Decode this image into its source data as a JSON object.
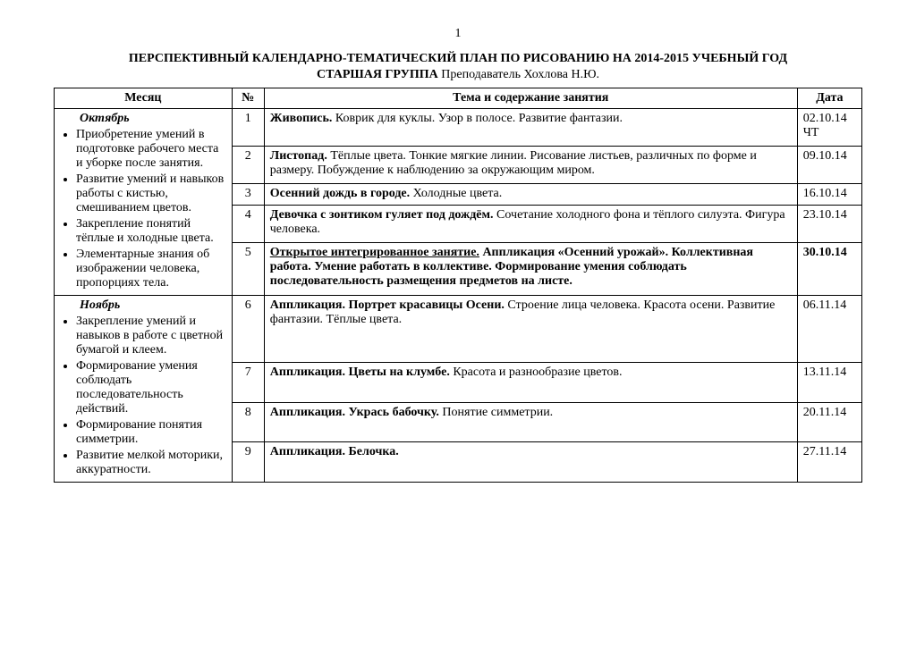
{
  "page_number": "1",
  "main_title": "ПЕРСПЕКТИВНЫЙ КАЛЕНДАРНО-ТЕМАТИЧЕСКИЙ ПЛАН ПО  РИСОВАНИЮ НА 2014-2015 УЧЕБНЫЙ ГОД",
  "subtitle_bold": "СТАРШАЯ ГРУППА",
  "subtitle_rest": "  Преподаватель Хохлова Н.Ю.",
  "headers": {
    "month": "Месяц",
    "num": "№",
    "topic": "Тема и содержание занятия",
    "date": "Дата"
  },
  "months": [
    {
      "name": "Октябрь",
      "bullets": [
        "Приобретение умений в подготовке рабочего места и уборке после занятия.",
        "Развитие умений и навыков работы с кистью, смешиванием цветов.",
        "Закрепление понятий тёплые и холодные цвета.",
        "        Элементарные знания об изображении человека, пропорциях тела."
      ],
      "rows": [
        {
          "n": "1",
          "topic_bold": "Живопись.",
          "topic_rest": " Коврик для куклы. Узор в полосе. Развитие фантазии.",
          "date": "02.10.14 ЧТ"
        },
        {
          "n": "2",
          "topic_bold": "Листопад.",
          "topic_rest": " Тёплые цвета. Тонкие мягкие  линии. Рисование  листьев, различных  по форме и размеру. Побуждение к наблюдению за окружающим миром.",
          "date": "09.10.14"
        },
        {
          "n": "3",
          "topic_bold": "Осенний дождь в городе.",
          "topic_rest": " Холодные цвета.",
          "date": "16.10.14"
        },
        {
          "n": "4",
          "topic_bold": "Девочка с зонтиком гуляет под дождём.",
          "topic_rest": " Сочетание холодного фона и тёплого силуэта. Фигура человека.",
          "date": "23.10.14"
        },
        {
          "n": "5",
          "topic_underline_bold": "Открытое интегрированное занятие.",
          "topic_bold_rest": " Аппликация «Осенний урожай». Коллективная работа. Умение работать в коллективе. Формирование умения соблюдать последовательность размещения предметов на листе.",
          "date": "30.10.14",
          "date_bold": true
        }
      ]
    },
    {
      "name": "Ноябрь",
      "bullets": [
        "Закрепление умений и навыков в работе с цветной бумагой и клеем.",
        "Формирование умения соблюдать последовательность действий.",
        "Формирование понятия симметрии.",
        "Развитие мелкой моторики, аккуратности."
      ],
      "rows": [
        {
          "n": "6",
          "topic_bold": "Аппликация. Портрет красавицы Осени.",
          "topic_rest": " Строение лица человека. Красота осени. Развитие фантазии. Тёплые цвета.",
          "date": "06.11.14"
        },
        {
          "n": "7",
          "topic_bold": "Аппликация. Цветы на клумбе.",
          "topic_rest": " Красота и разнообразие цветов.",
          "date": "13.11.14"
        },
        {
          "n": "8",
          "topic_bold": "Аппликация. Укрась бабочку.",
          "topic_rest": " Понятие симметрии.",
          "date": "20.11.14"
        },
        {
          "n": "9",
          "topic_bold": "Аппликация. Белочка.",
          "topic_rest": "",
          "date": "27.11.14"
        }
      ]
    }
  ]
}
